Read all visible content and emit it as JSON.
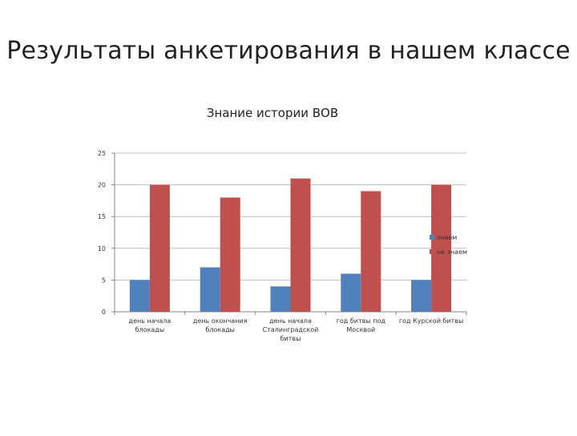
{
  "slide": {
    "title": "Результаты анкетирования в нашем классе"
  },
  "chart_data": {
    "type": "bar",
    "title": "Знание истории ВОВ",
    "xlabel": "",
    "ylabel": "",
    "ylim": [
      0,
      25
    ],
    "yticks": [
      0,
      5,
      10,
      15,
      20,
      25
    ],
    "grid": true,
    "legend_position": "right",
    "categories": [
      [
        "день начала",
        "блокады"
      ],
      [
        "день окончания",
        "блокады"
      ],
      [
        "день начала",
        "Сталинградской",
        "битвы"
      ],
      [
        "год битвы под",
        "Москвой"
      ],
      [
        "год Курской битвы"
      ]
    ],
    "series": [
      {
        "name": "знаем",
        "color": "#4F81BD",
        "values": [
          5,
          7,
          4,
          6,
          5
        ]
      },
      {
        "name": "не знаем",
        "color": "#C0504D",
        "values": [
          20,
          18,
          21,
          19,
          20
        ]
      }
    ]
  }
}
